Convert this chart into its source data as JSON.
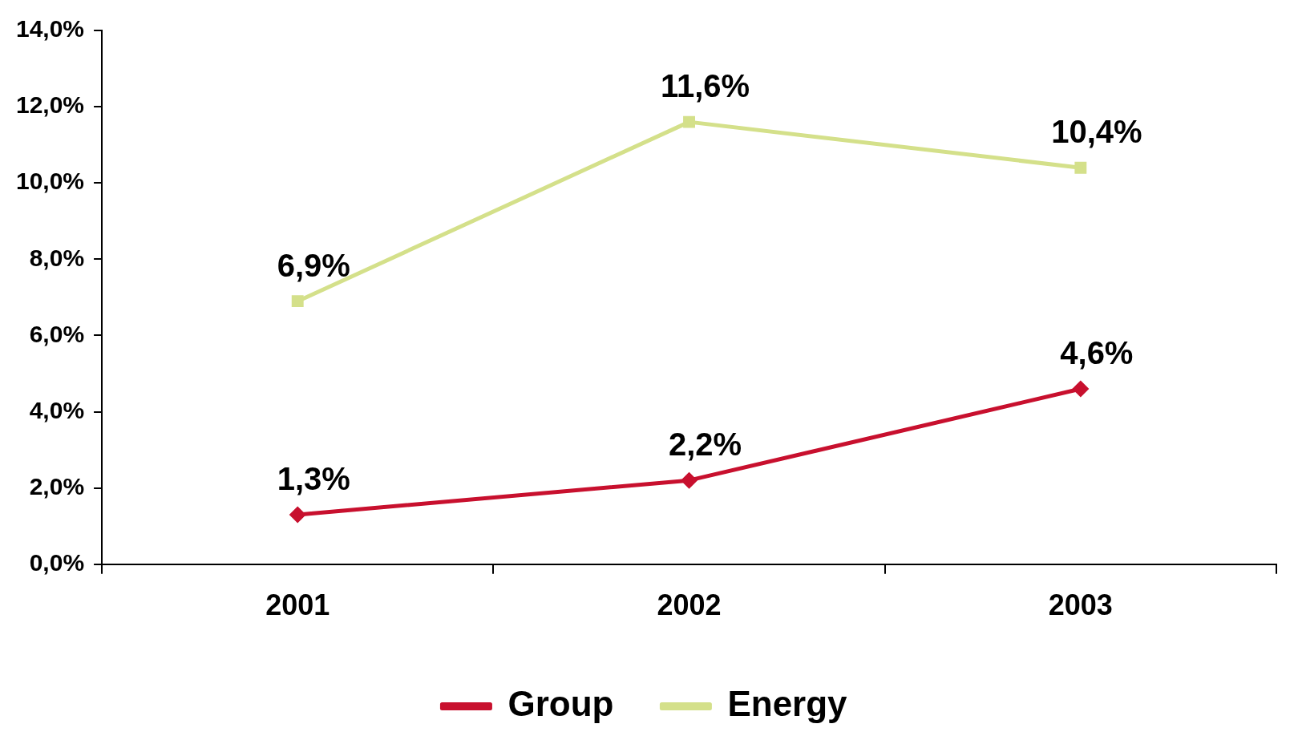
{
  "chart_data": {
    "type": "line",
    "categories": [
      "2001",
      "2002",
      "2003"
    ],
    "series": [
      {
        "name": "Group",
        "color": "#c8102e",
        "marker": "diamond",
        "values": [
          1.3,
          2.2,
          4.6
        ],
        "value_labels": [
          "1,3%",
          "2,2%",
          "4,6%"
        ]
      },
      {
        "name": "Energy",
        "color": "#d4e08a",
        "marker": "square",
        "values": [
          6.9,
          11.6,
          10.4
        ],
        "value_labels": [
          "6,9%",
          "11,6%",
          "10,4%"
        ]
      }
    ],
    "ylim": [
      0,
      14
    ],
    "yticks": [
      {
        "value": 0,
        "label": "0,0%"
      },
      {
        "value": 2,
        "label": "2,0%"
      },
      {
        "value": 4,
        "label": "4,0%"
      },
      {
        "value": 6,
        "label": "6,0%"
      },
      {
        "value": 8,
        "label": "8,0%"
      },
      {
        "value": 10,
        "label": "10,0%"
      },
      {
        "value": 12,
        "label": "12,0%"
      },
      {
        "value": 14,
        "label": "14,0%"
      }
    ],
    "grid": false,
    "legend": "bottom",
    "line_style": "solid"
  }
}
